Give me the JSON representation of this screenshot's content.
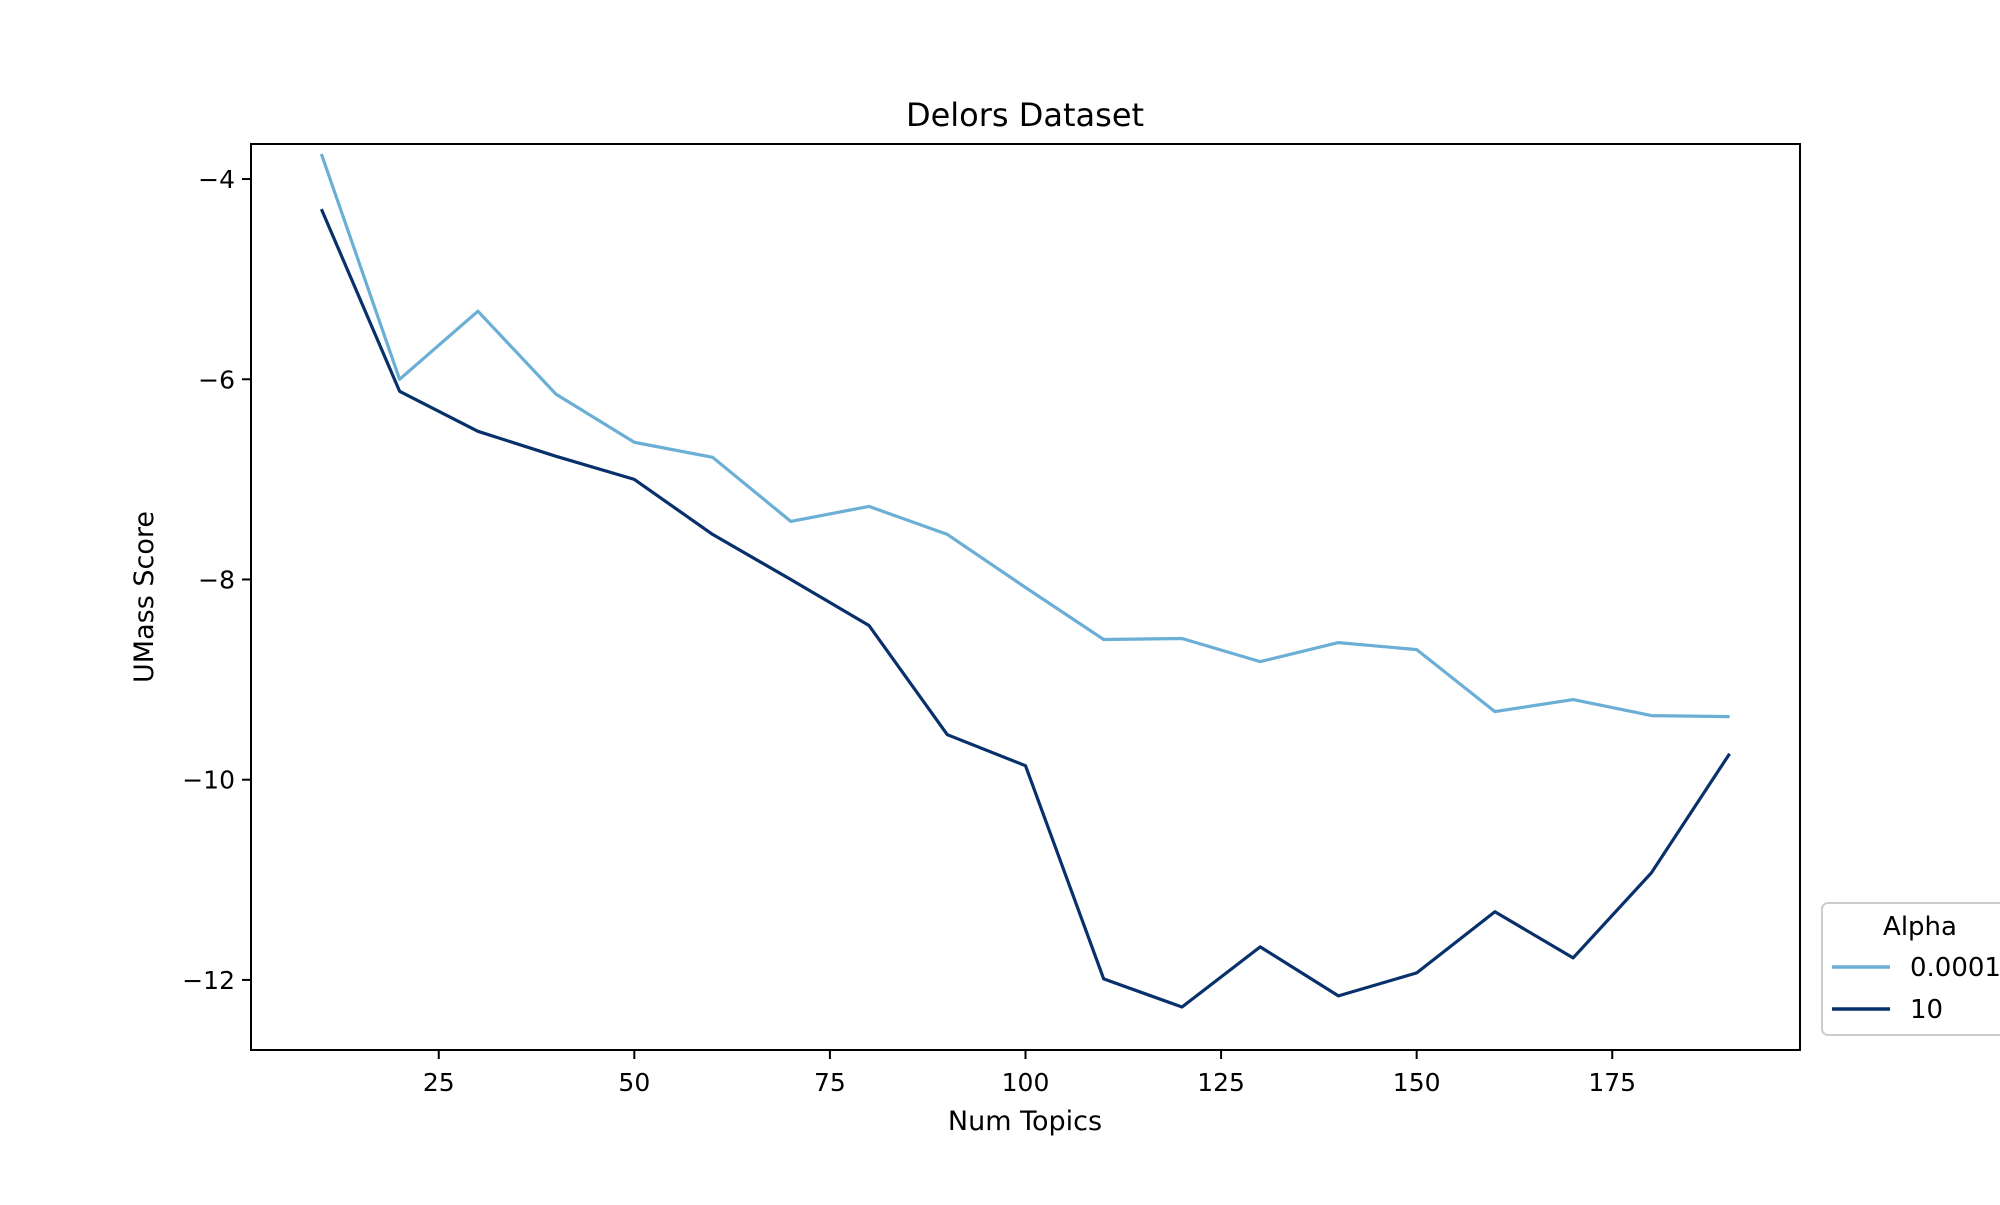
{
  "chart_data": {
    "type": "line",
    "title": "Delors Dataset",
    "xlabel": "Num Topics",
    "ylabel": "UMass Score",
    "xlim": [
      1,
      199
    ],
    "ylim": [
      -12.7,
      -3.65
    ],
    "x_ticks": [
      25,
      50,
      75,
      100,
      125,
      150,
      175
    ],
    "x_tick_labels": [
      "25",
      "50",
      "75",
      "100",
      "125",
      "150",
      "175"
    ],
    "y_ticks": [
      -4,
      -6,
      -8,
      -10,
      -12
    ],
    "y_tick_labels": [
      "−4",
      "−6",
      "−8",
      "−10",
      "−12"
    ],
    "grid": false,
    "legend": {
      "title": "Alpha",
      "placement": "lower-right, outside plot area"
    },
    "x": [
      10,
      20,
      30,
      40,
      50,
      60,
      70,
      80,
      90,
      100,
      110,
      120,
      130,
      140,
      150,
      160,
      170,
      180,
      190
    ],
    "series": [
      {
        "name": "0.0001",
        "color": "#6baed6",
        "values": [
          -3.75,
          -6.0,
          -5.32,
          -6.15,
          -6.63,
          -6.78,
          -7.42,
          -7.27,
          -7.55,
          -8.08,
          -8.6,
          -8.59,
          -8.82,
          -8.63,
          -8.7,
          -9.32,
          -9.2,
          -9.36,
          -9.37
        ]
      },
      {
        "name": "10",
        "color": "#08306b",
        "values": [
          -4.3,
          -6.12,
          -6.52,
          -6.77,
          -7.0,
          -7.55,
          -8.0,
          -8.46,
          -9.55,
          -9.86,
          -11.99,
          -12.27,
          -11.67,
          -12.16,
          -11.93,
          -11.32,
          -11.78,
          -10.93,
          -9.74
        ]
      }
    ]
  }
}
